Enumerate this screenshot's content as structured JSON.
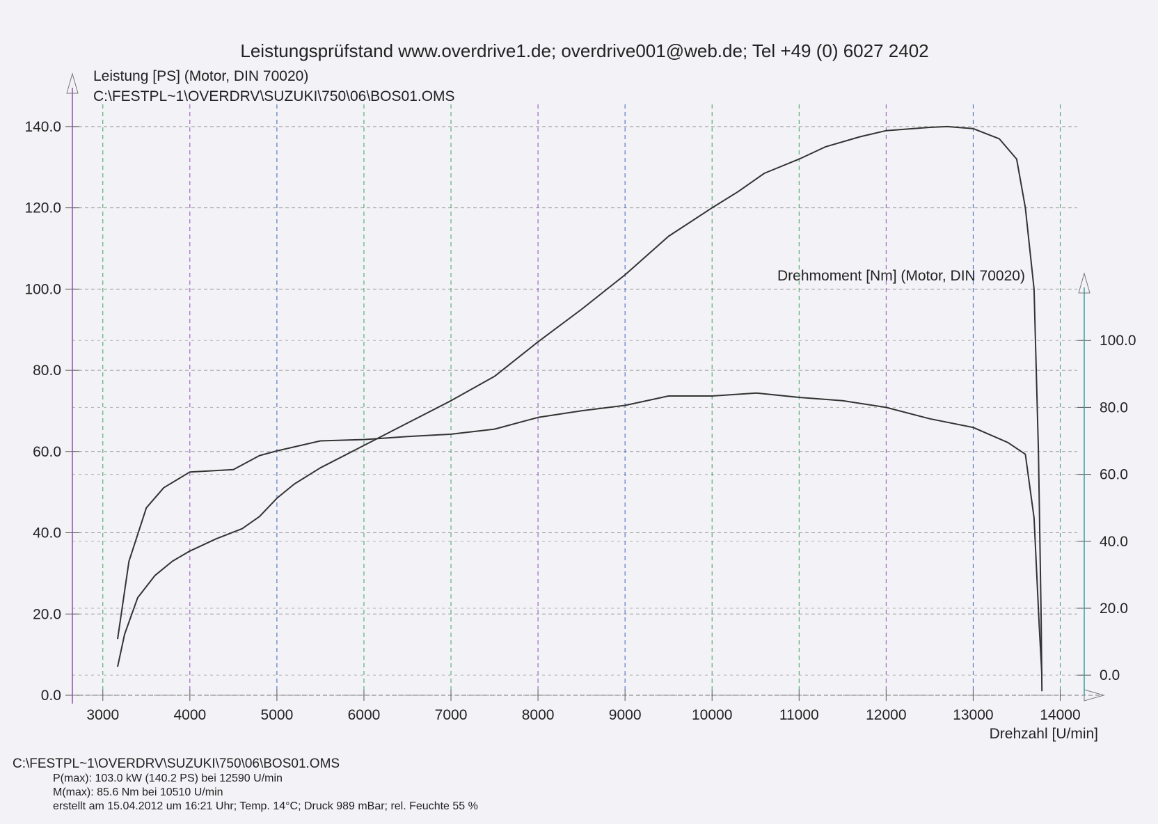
{
  "chart_data": {
    "type": "line",
    "title": "Leistungsprüfstand www.overdrive1.de; overdrive001@web.de; Tel +49 (0) 6027 2402",
    "ylabel": "Leistung [PS] (Motor, DIN 70020)",
    "ylabel_file": "C:\\FESTPL~1\\OVERDRV\\SUZUKI\\750\\06\\BOS01.OMS",
    "y2label": "Drehmoment [Nm] (Motor, DIN 70020)",
    "xlabel": "Drehzahl [U/min]",
    "footer": [
      "C:\\FESTPL~1\\OVERDRV\\SUZUKI\\750\\06\\BOS01.OMS",
      "P(max): 103.0 kW (140.2 PS) bei 12590 U/min",
      "M(max): 85.6 Nm bei 10510 U/min",
      "erstellt am 15.04.2012 um 16:21 Uhr; Temp. 14°C; Druck 989 mBar; rel. Feuchte 55 %"
    ],
    "xlim": [
      2650,
      14500
    ],
    "xticks": [
      3000,
      4000,
      5000,
      6000,
      7000,
      8000,
      9000,
      10000,
      11000,
      12000,
      13000,
      14000
    ],
    "ylim": [
      0,
      153
    ],
    "yticks": [
      {
        "value": 0,
        "label": "0.0"
      },
      {
        "value": 20,
        "label": "20.0"
      },
      {
        "value": 40,
        "label": "40.0"
      },
      {
        "value": 60,
        "label": "60.0"
      },
      {
        "value": 80,
        "label": "80.0"
      },
      {
        "value": 100,
        "label": "100.0"
      },
      {
        "value": 120,
        "label": "120.0"
      },
      {
        "value": 140,
        "label": "140.0"
      }
    ],
    "y2lim": [
      -6,
      120
    ],
    "y2ticks": [
      {
        "value": 0,
        "label": "0.0"
      },
      {
        "value": 20,
        "label": "20.0"
      },
      {
        "value": 40,
        "label": "40.0"
      },
      {
        "value": 60,
        "label": "60.0"
      },
      {
        "value": 80,
        "label": "80.0"
      },
      {
        "value": 100,
        "label": "100.0"
      }
    ],
    "grid": true,
    "grid_colors": [
      "#3aa060",
      "#8a4fb0",
      "#3a5fc0",
      "#3aa060"
    ],
    "series": [
      {
        "color": "#333333",
        "axis": "y",
        "x": [
          3170,
          3250,
          3400,
          3600,
          3800,
          4000,
          4300,
          4600,
          4800,
          5000,
          5200,
          5500,
          6000,
          6500,
          7000,
          7500,
          8000,
          8500,
          9000,
          9500,
          10000,
          10300,
          10600,
          11000,
          11300,
          11700,
          12000,
          12500,
          12700,
          13000,
          13300,
          13500,
          13600,
          13700,
          13750,
          13780,
          13790
        ],
        "values": [
          7,
          15,
          24,
          29.5,
          33,
          35.5,
          38.5,
          41,
          44,
          48.5,
          52,
          56,
          61.5,
          67,
          72.5,
          78.5,
          87,
          95,
          103.5,
          113,
          120,
          124,
          128.5,
          132,
          135,
          137.5,
          139,
          139.8,
          140,
          139.5,
          137,
          132,
          120,
          100,
          60,
          20,
          1
        ]
      },
      {
        "color": "#333333",
        "axis": "y2",
        "x": [
          3170,
          3300,
          3500,
          3700,
          4000,
          4500,
          4800,
          5000,
          5500,
          6000,
          6500,
          7000,
          7500,
          8000,
          8500,
          9000,
          9500,
          10000,
          10510,
          11000,
          11500,
          12000,
          12500,
          13000,
          13400,
          13600,
          13700,
          13760,
          13790
        ],
        "values": [
          10.8,
          34,
          50,
          56,
          60.7,
          61.4,
          65.6,
          67,
          70,
          70.4,
          71.3,
          72,
          73.5,
          77,
          79,
          80.6,
          83.4,
          83.4,
          84.3,
          83,
          82,
          80,
          76.6,
          74,
          69.5,
          66,
          47,
          14,
          0
        ]
      }
    ]
  }
}
